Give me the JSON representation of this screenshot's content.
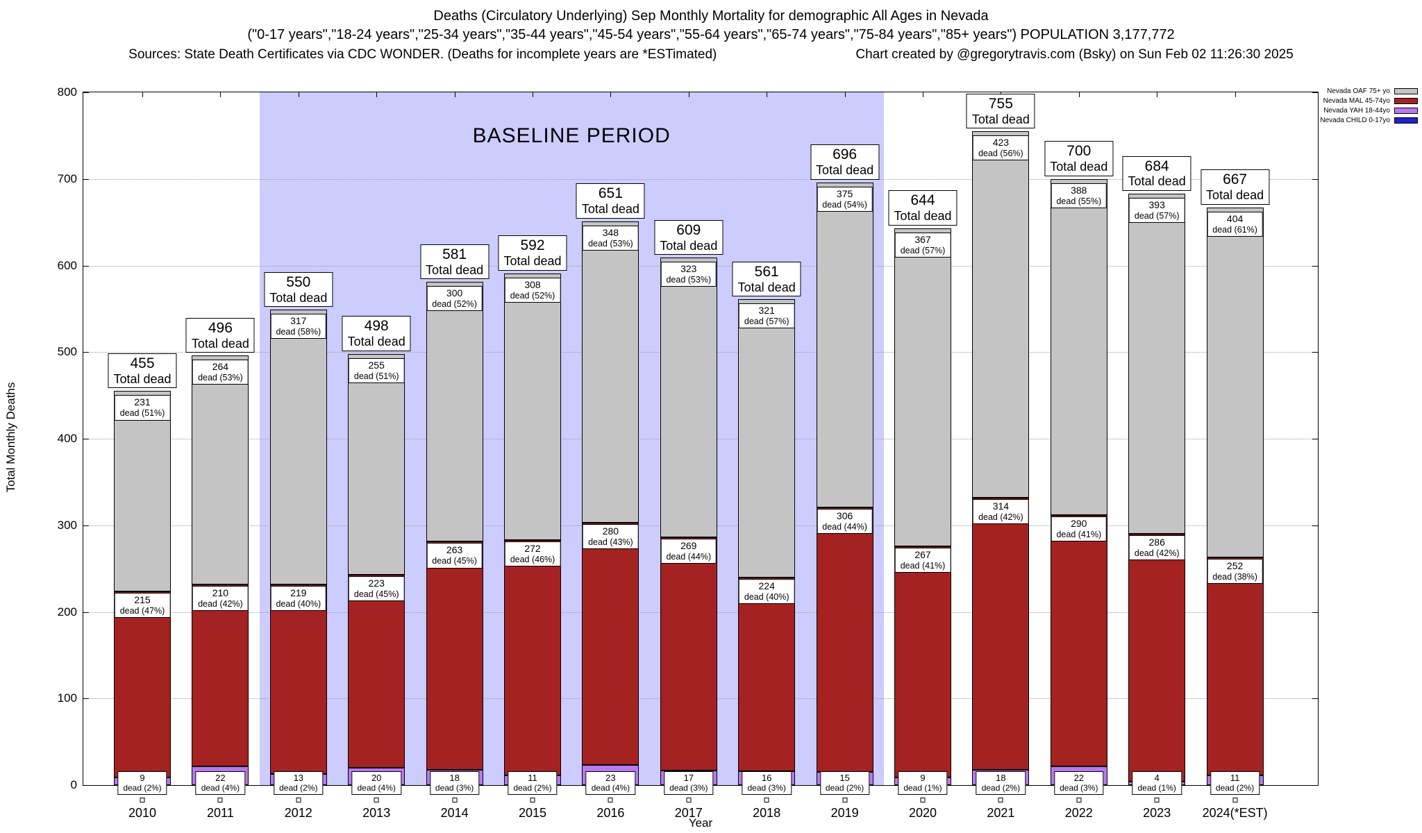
{
  "header": {
    "line1": "Deaths (Circulatory Underlying) Sep Monthly Mortality for demographic All Ages in Nevada",
    "line2": "(\"0-17 years\",\"18-24 years\",\"25-34 years\",\"35-44 years\",\"45-54 years\",\"55-64 years\",\"65-74 years\",\"75-84 years\",\"85+ years\") POPULATION 3,177,772",
    "sources": "Sources: State Death Certificates via CDC WONDER. (Deaths for incomplete years are *ESTimated)",
    "credit": "Chart created by @gregorytravis.com (Bsky) on Sun Feb 02 11:26:30 2025"
  },
  "chart_data": {
    "type": "bar",
    "stacked": true,
    "title": "Deaths (Circulatory Underlying) Sep Monthly Mortality for demographic All Ages in Nevada",
    "xlabel": "Year",
    "ylabel": "Total Monthly Deaths",
    "ylim": [
      0,
      800
    ],
    "yticks": [
      0,
      100,
      200,
      300,
      400,
      500,
      600,
      700,
      800
    ],
    "grid": true,
    "legend_position": "top-right-outside",
    "baseline_period": {
      "label": "BASELINE PERIOD",
      "start_year": "2012",
      "end_year": "2019"
    },
    "colors": {
      "oaf": "#c4c4c4",
      "mal": "#a42222",
      "yah": "#b878f0",
      "child": "#2222cc",
      "baseline": "#ccccff",
      "label_box_bg": "#ffffff",
      "label_box_border": "#000000"
    },
    "legend": [
      {
        "label": "Nevada OAF 75+ yo",
        "color_key": "oaf"
      },
      {
        "label": "Nevada MAL 45-74yo",
        "color_key": "mal"
      },
      {
        "label": "Nevada YAH 18-44yo",
        "color_key": "yah"
      },
      {
        "label": "Nevada CHILD 0-17yo",
        "color_key": "child"
      }
    ],
    "total_label_suffix": "Total dead",
    "bars": [
      {
        "year": "2010",
        "total": 455,
        "oaf": {
          "v": 231,
          "label": "dead (51%)"
        },
        "mal": {
          "v": 215,
          "label": "dead (47%)"
        },
        "yah": {
          "v": 9,
          "label": "dead (2%)"
        }
      },
      {
        "year": "2011",
        "total": 496,
        "oaf": {
          "v": 264,
          "label": "dead (53%)"
        },
        "mal": {
          "v": 210,
          "label": "dead (42%)"
        },
        "yah": {
          "v": 22,
          "label": "dead (4%)"
        }
      },
      {
        "year": "2012",
        "total": 550,
        "oaf": {
          "v": 317,
          "label": "dead (58%)"
        },
        "mal": {
          "v": 219,
          "label": "dead (40%)"
        },
        "yah": {
          "v": 13,
          "label": "dead (2%)"
        }
      },
      {
        "year": "2013",
        "total": 498,
        "oaf": {
          "v": 255,
          "label": "dead (51%)"
        },
        "mal": {
          "v": 223,
          "label": "dead (45%)"
        },
        "yah": {
          "v": 20,
          "label": "dead (4%)"
        }
      },
      {
        "year": "2014",
        "total": 581,
        "oaf": {
          "v": 300,
          "label": "dead (52%)"
        },
        "mal": {
          "v": 263,
          "label": "dead (45%)"
        },
        "yah": {
          "v": 18,
          "label": "dead (3%)"
        }
      },
      {
        "year": "2015",
        "total": 592,
        "oaf": {
          "v": 308,
          "label": "dead (52%)"
        },
        "mal": {
          "v": 272,
          "label": "dead (46%)"
        },
        "yah": {
          "v": 11,
          "label": "dead (2%)"
        }
      },
      {
        "year": "2016",
        "total": 651,
        "oaf": {
          "v": 348,
          "label": "dead (53%)"
        },
        "mal": {
          "v": 280,
          "label": "dead (43%)"
        },
        "yah": {
          "v": 23,
          "label": "dead (4%)"
        }
      },
      {
        "year": "2017",
        "total": 609,
        "oaf": {
          "v": 323,
          "label": "dead (53%)"
        },
        "mal": {
          "v": 269,
          "label": "dead (44%)"
        },
        "yah": {
          "v": 17,
          "label": "dead (3%)"
        }
      },
      {
        "year": "2018",
        "total": 561,
        "oaf": {
          "v": 321,
          "label": "dead (57%)"
        },
        "mal": {
          "v": 224,
          "label": "dead (40%)"
        },
        "yah": {
          "v": 16,
          "label": "dead (3%)"
        }
      },
      {
        "year": "2019",
        "total": 696,
        "oaf": {
          "v": 375,
          "label": "dead (54%)"
        },
        "mal": {
          "v": 306,
          "label": "dead (44%)"
        },
        "yah": {
          "v": 15,
          "label": "dead (2%)"
        }
      },
      {
        "year": "2020",
        "total": 644,
        "oaf": {
          "v": 367,
          "label": "dead (57%)"
        },
        "mal": {
          "v": 267,
          "label": "dead (41%)"
        },
        "yah": {
          "v": 9,
          "label": "dead (1%)"
        }
      },
      {
        "year": "2021",
        "total": 755,
        "oaf": {
          "v": 423,
          "label": "dead (56%)"
        },
        "mal": {
          "v": 314,
          "label": "dead (42%)"
        },
        "yah": {
          "v": 18,
          "label": "dead (2%)"
        }
      },
      {
        "year": "2022",
        "total": 700,
        "oaf": {
          "v": 388,
          "label": "dead (55%)"
        },
        "mal": {
          "v": 290,
          "label": "dead (41%)"
        },
        "yah": {
          "v": 22,
          "label": "dead (3%)"
        }
      },
      {
        "year": "2023",
        "total": 684,
        "oaf": {
          "v": 393,
          "label": "dead (57%)"
        },
        "mal": {
          "v": 286,
          "label": "dead (42%)"
        },
        "yah": {
          "v": 4,
          "label": "dead (1%)"
        }
      },
      {
        "year": "2024(*EST)",
        "total": 667,
        "oaf": {
          "v": 404,
          "label": "dead (61%)"
        },
        "mal": {
          "v": 252,
          "label": "dead (38%)"
        },
        "yah": {
          "v": 11,
          "label": "dead (2%)"
        }
      }
    ]
  }
}
